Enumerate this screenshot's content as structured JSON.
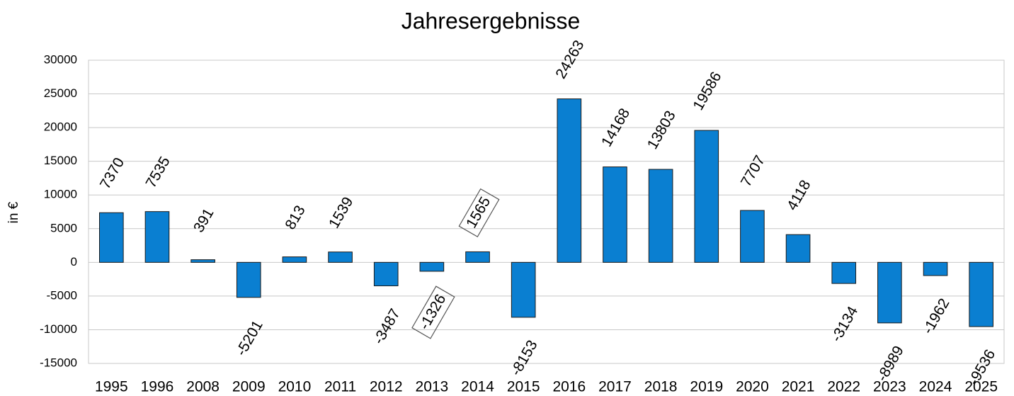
{
  "chart_data": {
    "type": "bar",
    "title": "Jahresergebnisse",
    "y_label": "in €",
    "categories": [
      "1995",
      "1996",
      "2008",
      "2009",
      "2010",
      "2011",
      "2012",
      "2013",
      "2014",
      "2015",
      "2016",
      "2017",
      "2018",
      "2019",
      "2020",
      "2021",
      "2022",
      "2023",
      "2024",
      "2025"
    ],
    "values": [
      7370,
      7535,
      391,
      -5201,
      813,
      1539,
      -3487,
      -1326,
      1565,
      -8153,
      24263,
      14168,
      13803,
      19586,
      7707,
      4118,
      -3134,
      -8989,
      -1962,
      -9536
    ],
    "color": "#0a7fd1",
    "ylim": [
      -15000,
      30000
    ],
    "yticks": [
      -15000,
      -10000,
      -5000,
      0,
      5000,
      10000,
      15000,
      20000,
      25000,
      30000
    ],
    "grid": true
  }
}
